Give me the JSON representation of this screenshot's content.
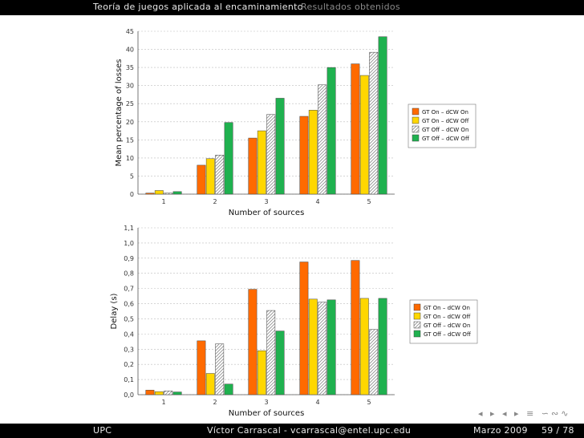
{
  "header": {
    "section_title": "Teoría de juegos aplicada al encaminamiento",
    "subsection_title": "Resultados obtenidos"
  },
  "footer": {
    "institution": "UPC",
    "author": "Víctor Carrascal - vcarrascal@entel.upc.edu",
    "date": "Marzo 2009",
    "page": "59 / 78"
  },
  "nav_symbols": "◂ ▸ ◂ ▸ ≡ ∽∾∿",
  "colors": {
    "gt_on_dcw_on": "#ff6a00",
    "gt_on_dcw_off": "#ffd700",
    "gt_off_dcw_on": "#ffffff",
    "gt_off_dcw_off": "#1fb14f"
  },
  "chart_data": [
    {
      "type": "bar",
      "title": "",
      "xlabel": "Number of sources",
      "ylabel": "Mean percentage of losses",
      "categories": [
        "1",
        "2",
        "3",
        "4",
        "5"
      ],
      "ylim": [
        0,
        45
      ],
      "yticks": [
        "0",
        "5",
        "10",
        "15",
        "20",
        "25",
        "30",
        "35",
        "40",
        "45"
      ],
      "grid": "horizontal dashed",
      "legend_position": "right",
      "series": [
        {
          "name": "GT On – dCW On",
          "values": [
            0.3,
            8.0,
            15.5,
            21.5,
            36.0
          ]
        },
        {
          "name": "GT On – dCW Off",
          "values": [
            1.0,
            9.8,
            17.5,
            23.2,
            32.8
          ]
        },
        {
          "name": "GT Off – dCW On",
          "values": [
            0.3,
            10.8,
            22.0,
            30.2,
            39.2
          ]
        },
        {
          "name": "GT Off – dCW Off",
          "values": [
            0.7,
            19.8,
            26.5,
            35.0,
            43.5
          ]
        }
      ]
    },
    {
      "type": "bar",
      "title": "",
      "xlabel": "Number of sources",
      "ylabel": "Delay (s)",
      "categories": [
        "1",
        "2",
        "3",
        "4",
        "5"
      ],
      "ylim": [
        0,
        1.1
      ],
      "yticks": [
        "0,0",
        "0,1",
        "0,2",
        "0,3",
        "0,4",
        "0,5",
        "0,6",
        "0,7",
        "0,8",
        "0,9",
        "1,0",
        "1,1"
      ],
      "grid": "horizontal dashed",
      "legend_position": "right",
      "series": [
        {
          "name": "GT On – dCW On",
          "values": [
            0.03,
            0.355,
            0.695,
            0.875,
            0.885
          ]
        },
        {
          "name": "GT On – dCW Off",
          "values": [
            0.02,
            0.14,
            0.29,
            0.63,
            0.635
          ]
        },
        {
          "name": "GT Off – dCW On",
          "values": [
            0.025,
            0.335,
            0.555,
            0.61,
            0.43
          ]
        },
        {
          "name": "GT Off – dCW Off",
          "values": [
            0.018,
            0.07,
            0.42,
            0.625,
            0.635
          ]
        }
      ]
    }
  ]
}
